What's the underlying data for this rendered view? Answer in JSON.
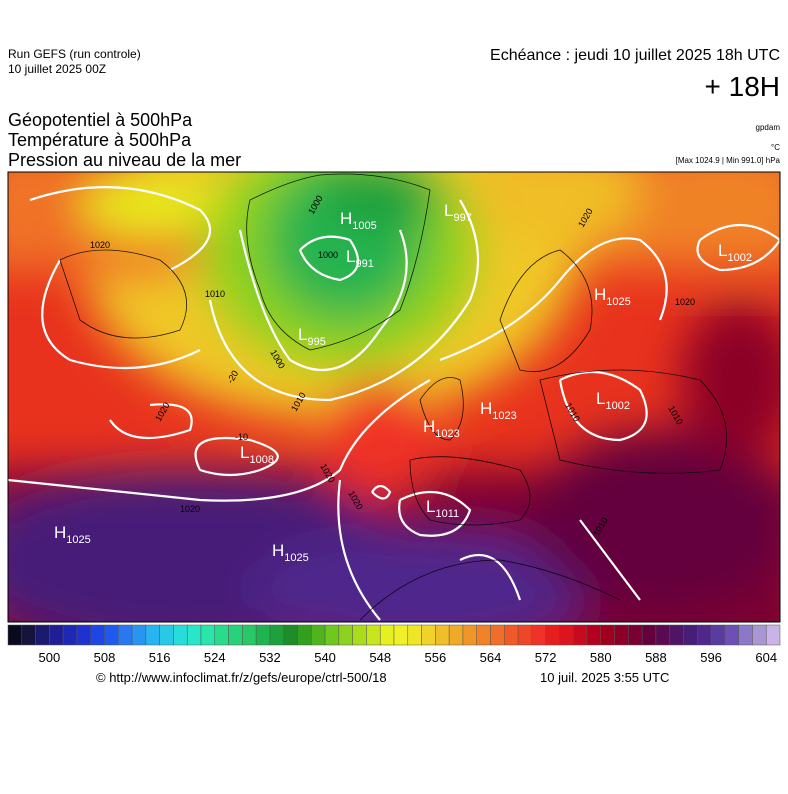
{
  "header": {
    "run": "Run GEFS (run controle)",
    "run_date": "10 juillet 2025 00Z",
    "valid": "Echéance : jeudi 10 juillet 2025 18h UTC",
    "lead": "+ 18H"
  },
  "fields": [
    "Géopotentiel à 500hPa",
    "Température à 500hPa",
    "Pression au niveau de la mer"
  ],
  "units": {
    "geopotential": "gpdam",
    "temperature": "°C",
    "pressure": "[Max 1024.9 | Min 991.0] hPa"
  },
  "centers": [
    {
      "letter": "H",
      "value": "1005"
    },
    {
      "letter": "L",
      "value": "997"
    },
    {
      "letter": "L",
      "value": "991"
    },
    {
      "letter": "L",
      "value": "995"
    },
    {
      "letter": "L",
      "value": "1008"
    },
    {
      "letter": "H",
      "value": "1025"
    },
    {
      "letter": "H",
      "value": "1025"
    },
    {
      "letter": "H",
      "value": "1023"
    },
    {
      "letter": "H",
      "value": "1023"
    },
    {
      "letter": "L",
      "value": "1011"
    },
    {
      "letter": "H",
      "value": "1025"
    },
    {
      "letter": "L",
      "value": "1002"
    },
    {
      "letter": "L",
      "value": "1002"
    }
  ],
  "isobar_labels": [
    "1000",
    "1000",
    "1000",
    "1010",
    "1010",
    "1010",
    "1020",
    "1020",
    "1020",
    "1020",
    "1020",
    "1010",
    "1010",
    "1020",
    "1020",
    "-20",
    "-10"
  ],
  "colorbar": {
    "range": [
      494,
      606
    ],
    "ticks": [
      500,
      508,
      516,
      524,
      532,
      540,
      548,
      556,
      564,
      572,
      580,
      588,
      596,
      604
    ],
    "colors": [
      "#0a0a1e",
      "#14143c",
      "#1a1a6e",
      "#1e1e96",
      "#1e28b4",
      "#1e32d2",
      "#1e46e6",
      "#1e5af0",
      "#2878f0",
      "#2896f0",
      "#28b4f0",
      "#28c8e6",
      "#28dcdc",
      "#28e6c8",
      "#28e6aa",
      "#28dc8c",
      "#28d278",
      "#28c864",
      "#1eb450",
      "#1ea03c",
      "#1e8c28",
      "#32a01e",
      "#50b41e",
      "#6ec81e",
      "#8cd21e",
      "#aadc1e",
      "#c8e61e",
      "#e6f01e",
      "#f0f028",
      "#f0e628",
      "#f0d228",
      "#f0be28",
      "#f0aa28",
      "#f09628",
      "#f08228",
      "#f06e28",
      "#f05a28",
      "#f04628",
      "#f03228",
      "#e61e1e",
      "#dc141e",
      "#c80a1e",
      "#b4001e",
      "#a0001e",
      "#8c0028",
      "#780032",
      "#64003c",
      "#5a0a50",
      "#501464",
      "#461e78",
      "#50288c",
      "#5a3ca0",
      "#6e50b4",
      "#8c78c8",
      "#aa96d2",
      "#c8b4e6"
    ]
  },
  "footer": {
    "source": "© http://www.infoclimat.fr/z/gefs/europe/ctrl-500/18",
    "issued": "10 juil. 2025  3:55 UTC"
  }
}
